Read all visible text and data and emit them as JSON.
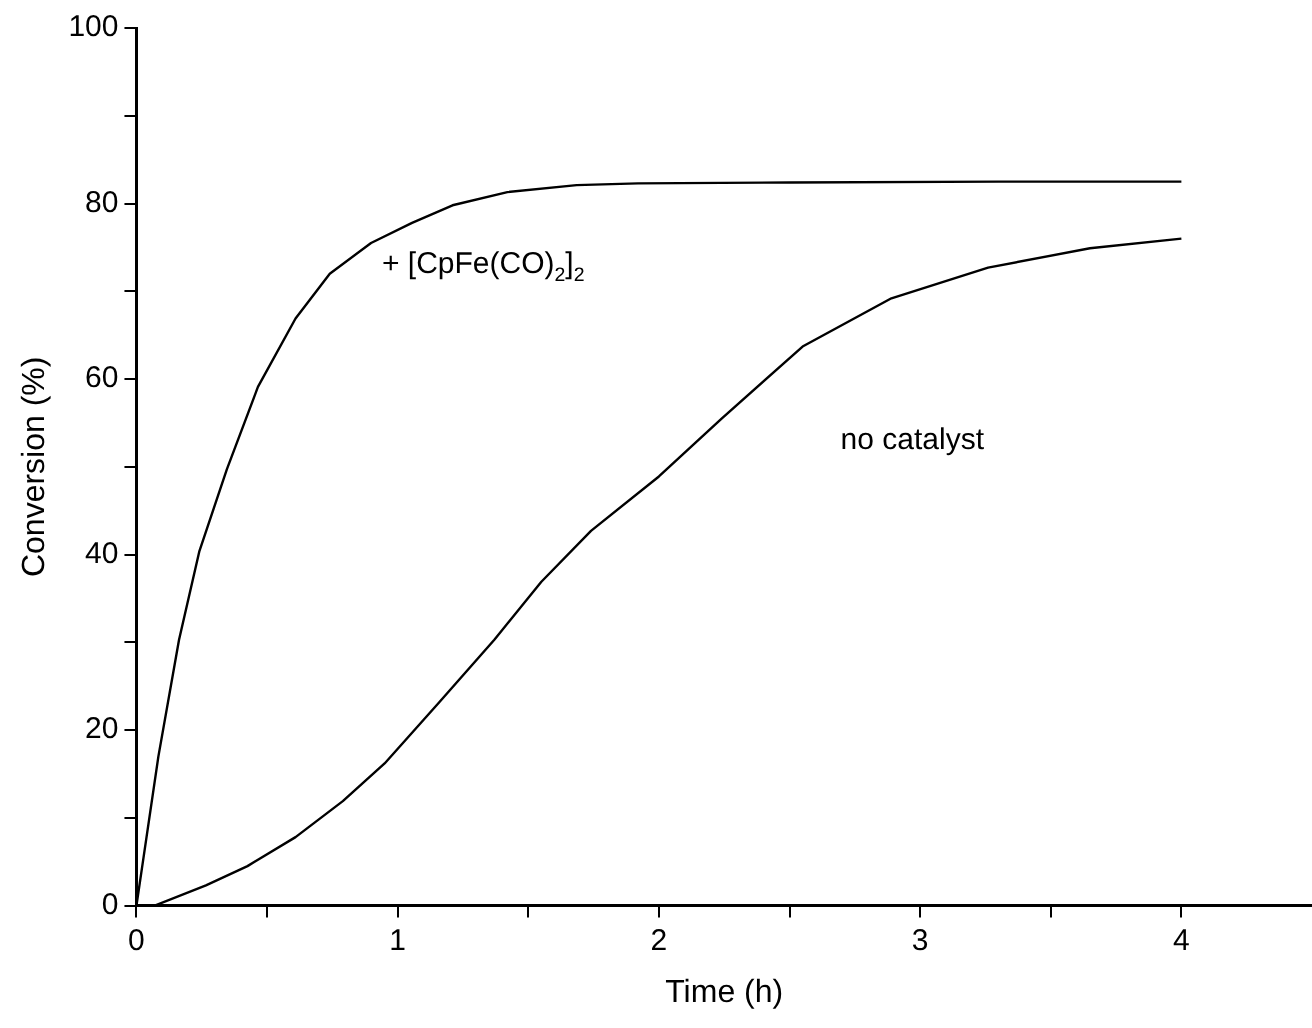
{
  "chart_data": {
    "type": "line",
    "xlabel": "Time (h)",
    "ylabel": "Conversion (%)",
    "xlim": [
      0,
      4.5
    ],
    "xticks": [
      0,
      {
        "value": 0.5,
        "label": null
      },
      1,
      {
        "value": 1.5,
        "label": null
      },
      2,
      {
        "value": 2.5,
        "label": null
      },
      3,
      {
        "value": 3.5,
        "label": null
      },
      4
    ],
    "ylim": [
      0,
      100
    ],
    "yticks": [
      0,
      {
        "value": 10,
        "label": null
      },
      20,
      {
        "value": 30,
        "label": null
      },
      40,
      {
        "value": 50,
        "label": null
      },
      60,
      {
        "value": 70,
        "label": null
      },
      80,
      {
        "value": 90,
        "label": null
      },
      100
    ],
    "grid": false,
    "legend": false,
    "marker": "none",
    "line_style": "solid",
    "series": [
      {
        "name": "+ [CpFe(CO)$_{2}$]$_{2}$",
        "color": "#000000",
        "x": [
          0,
          0.084,
          0.163,
          0.241,
          0.346,
          0.465,
          0.609,
          0.74,
          0.898,
          1.055,
          1.21,
          1.42,
          1.685,
          1.92,
          2.5,
          3.3,
          4
        ],
        "values": [
          0,
          17,
          30.3,
          40.4,
          49.7,
          59.1,
          66.9,
          72,
          75.5,
          77.8,
          79.8,
          81.3,
          82.1,
          82.3,
          82.4,
          82.5,
          82.5
        ]
      },
      {
        "name": "no catalyst",
        "color": "#000000",
        "x": [
          0,
          0.07,
          0.266,
          0.425,
          0.609,
          0.79,
          0.95,
          1.16,
          1.37,
          1.55,
          1.74,
          2.0,
          2.24,
          2.55,
          2.89,
          3.26,
          3.65,
          4
        ],
        "values": [
          0,
          0,
          2.3,
          4.5,
          7.8,
          11.9,
          16.2,
          23.2,
          30.3,
          36.9,
          42.7,
          48.9,
          55.5,
          63.7,
          69.2,
          72.7,
          74.9,
          76
        ]
      }
    ]
  }
}
